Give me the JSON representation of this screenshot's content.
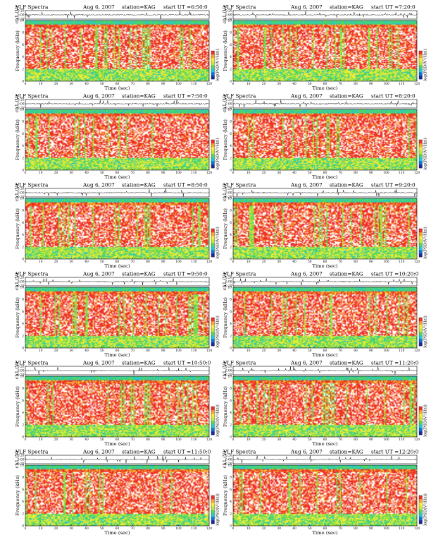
{
  "figure_header": {
    "title": "VLF Spectra",
    "date": "Aug 6, 2007",
    "station": "station=KAG",
    "start_prefix": "start  UT ="
  },
  "chart_data": {
    "type": "heatmap",
    "xlabel": "Time  (sec)",
    "ylabel": "Frequency  (kHz)",
    "wave_label": "ch1 (V)",
    "cbar_label": "log(PSD(V²/Hz))",
    "xlim": [
      0,
      120
    ],
    "ylim": [
      0,
      10
    ],
    "wave_ylim": [
      -0.2,
      0.2
    ],
    "xticks": [
      "0",
      "10",
      "20",
      "30",
      "40",
      "50",
      "60",
      "70",
      "80",
      "90",
      "100",
      "110",
      "120"
    ],
    "yticks": [
      "0",
      "2",
      "4",
      "6",
      "8",
      "10"
    ],
    "wave_yticks": [
      "0.20",
      "0.00",
      "-0.20"
    ],
    "colormap": [
      "#1e2a9a",
      "#0f76d8",
      "#26c8d0",
      "#54d65a",
      "#c9e73a",
      "#f6ee3a",
      "#f6a432",
      "#ee3228",
      "#ffffff"
    ],
    "panels": [
      {
        "start_ut": "6:50:0"
      },
      {
        "start_ut": "7:20:0"
      },
      {
        "start_ut": "7:50:0"
      },
      {
        "start_ut": "8:20:0"
      },
      {
        "start_ut": "8:50:0"
      },
      {
        "start_ut": "9:20:0"
      },
      {
        "start_ut": "9:50:0"
      },
      {
        "start_ut": "10:20:0"
      },
      {
        "start_ut": "10:50:0"
      },
      {
        "start_ut": "11:20:0"
      },
      {
        "start_ut": "11:50:0"
      },
      {
        "start_ut": "12:20:0"
      }
    ]
  }
}
